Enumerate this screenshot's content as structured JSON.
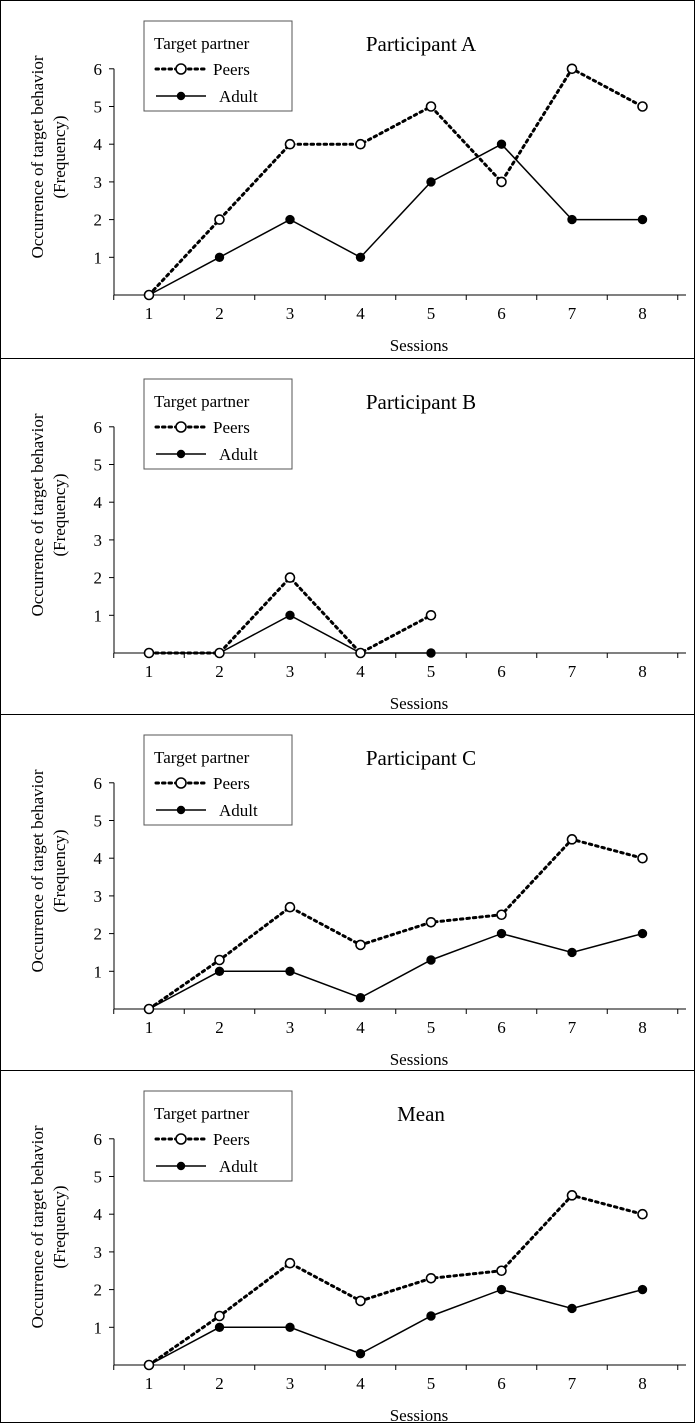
{
  "chart_data": [
    {
      "type": "line",
      "title": "Participant A",
      "xlabel": "Sessions",
      "ylabel_line1": "Occurrence of target behavior",
      "ylabel_line2": "(Frequency)",
      "legend_title": "Target partner",
      "legend_position": "top-left",
      "categories": [
        "1",
        "2",
        "3",
        "4",
        "5",
        "6",
        "7",
        "8"
      ],
      "ylim": [
        0,
        6
      ],
      "yticks": [
        "1",
        "2",
        "3",
        "4",
        "5",
        "6"
      ],
      "grid": false,
      "series": [
        {
          "name": "Peers",
          "style": "dotted-open-circle",
          "values": [
            0,
            2,
            4,
            4,
            5,
            3,
            6,
            5
          ]
        },
        {
          "name": "Adult",
          "style": "solid-filled-circle",
          "values": [
            0,
            1,
            2,
            1,
            3,
            4,
            2,
            2
          ]
        }
      ]
    },
    {
      "type": "line",
      "title": "Participant B",
      "xlabel": "Sessions",
      "ylabel_line1": "Occurrence of target behavior",
      "ylabel_line2": "(Frequency)",
      "legend_title": "Target partner",
      "legend_position": "top-left",
      "categories": [
        "1",
        "2",
        "3",
        "4",
        "5",
        "6",
        "7",
        "8"
      ],
      "ylim": [
        0,
        6
      ],
      "yticks": [
        "1",
        "2",
        "3",
        "4",
        "5",
        "6"
      ],
      "grid": false,
      "series": [
        {
          "name": "Peers",
          "style": "dotted-open-circle",
          "values": [
            0,
            0,
            2,
            0,
            1,
            null,
            null,
            null
          ]
        },
        {
          "name": "Adult",
          "style": "solid-filled-circle",
          "values": [
            0,
            0,
            1,
            0,
            0,
            null,
            null,
            null
          ]
        }
      ]
    },
    {
      "type": "line",
      "title": "Participant C",
      "xlabel": "Sessions",
      "ylabel_line1": "Occurrence of target behavior",
      "ylabel_line2": "(Frequency)",
      "legend_title": "Target partner",
      "legend_position": "top-left",
      "categories": [
        "1",
        "2",
        "3",
        "4",
        "5",
        "6",
        "7",
        "8"
      ],
      "ylim": [
        0,
        6
      ],
      "yticks": [
        "1",
        "2",
        "3",
        "4",
        "5",
        "6"
      ],
      "grid": false,
      "series": [
        {
          "name": "Peers",
          "style": "dotted-open-circle",
          "values": [
            0,
            1.3,
            2.7,
            1.7,
            2.3,
            2.5,
            4.5,
            4
          ]
        },
        {
          "name": "Adult",
          "style": "solid-filled-circle",
          "values": [
            0,
            1,
            1,
            0.3,
            1.3,
            2,
            1.5,
            2
          ]
        }
      ]
    },
    {
      "type": "line",
      "title": "Mean",
      "xlabel": "Sessions",
      "ylabel_line1": "Occurrence of target behavior",
      "ylabel_line2": "(Frequency)",
      "legend_title": "Target partner",
      "legend_position": "top-left",
      "categories": [
        "1",
        "2",
        "3",
        "4",
        "5",
        "6",
        "7",
        "8"
      ],
      "ylim": [
        0,
        6
      ],
      "yticks": [
        "1",
        "2",
        "3",
        "4",
        "5",
        "6"
      ],
      "grid": false,
      "series": [
        {
          "name": "Peers",
          "style": "dotted-open-circle",
          "values": [
            0,
            1.3,
            2.7,
            1.7,
            2.3,
            2.5,
            4.5,
            4
          ]
        },
        {
          "name": "Adult",
          "style": "solid-filled-circle",
          "values": [
            0,
            1,
            1,
            0.3,
            1.3,
            2,
            1.5,
            2
          ]
        }
      ]
    }
  ]
}
